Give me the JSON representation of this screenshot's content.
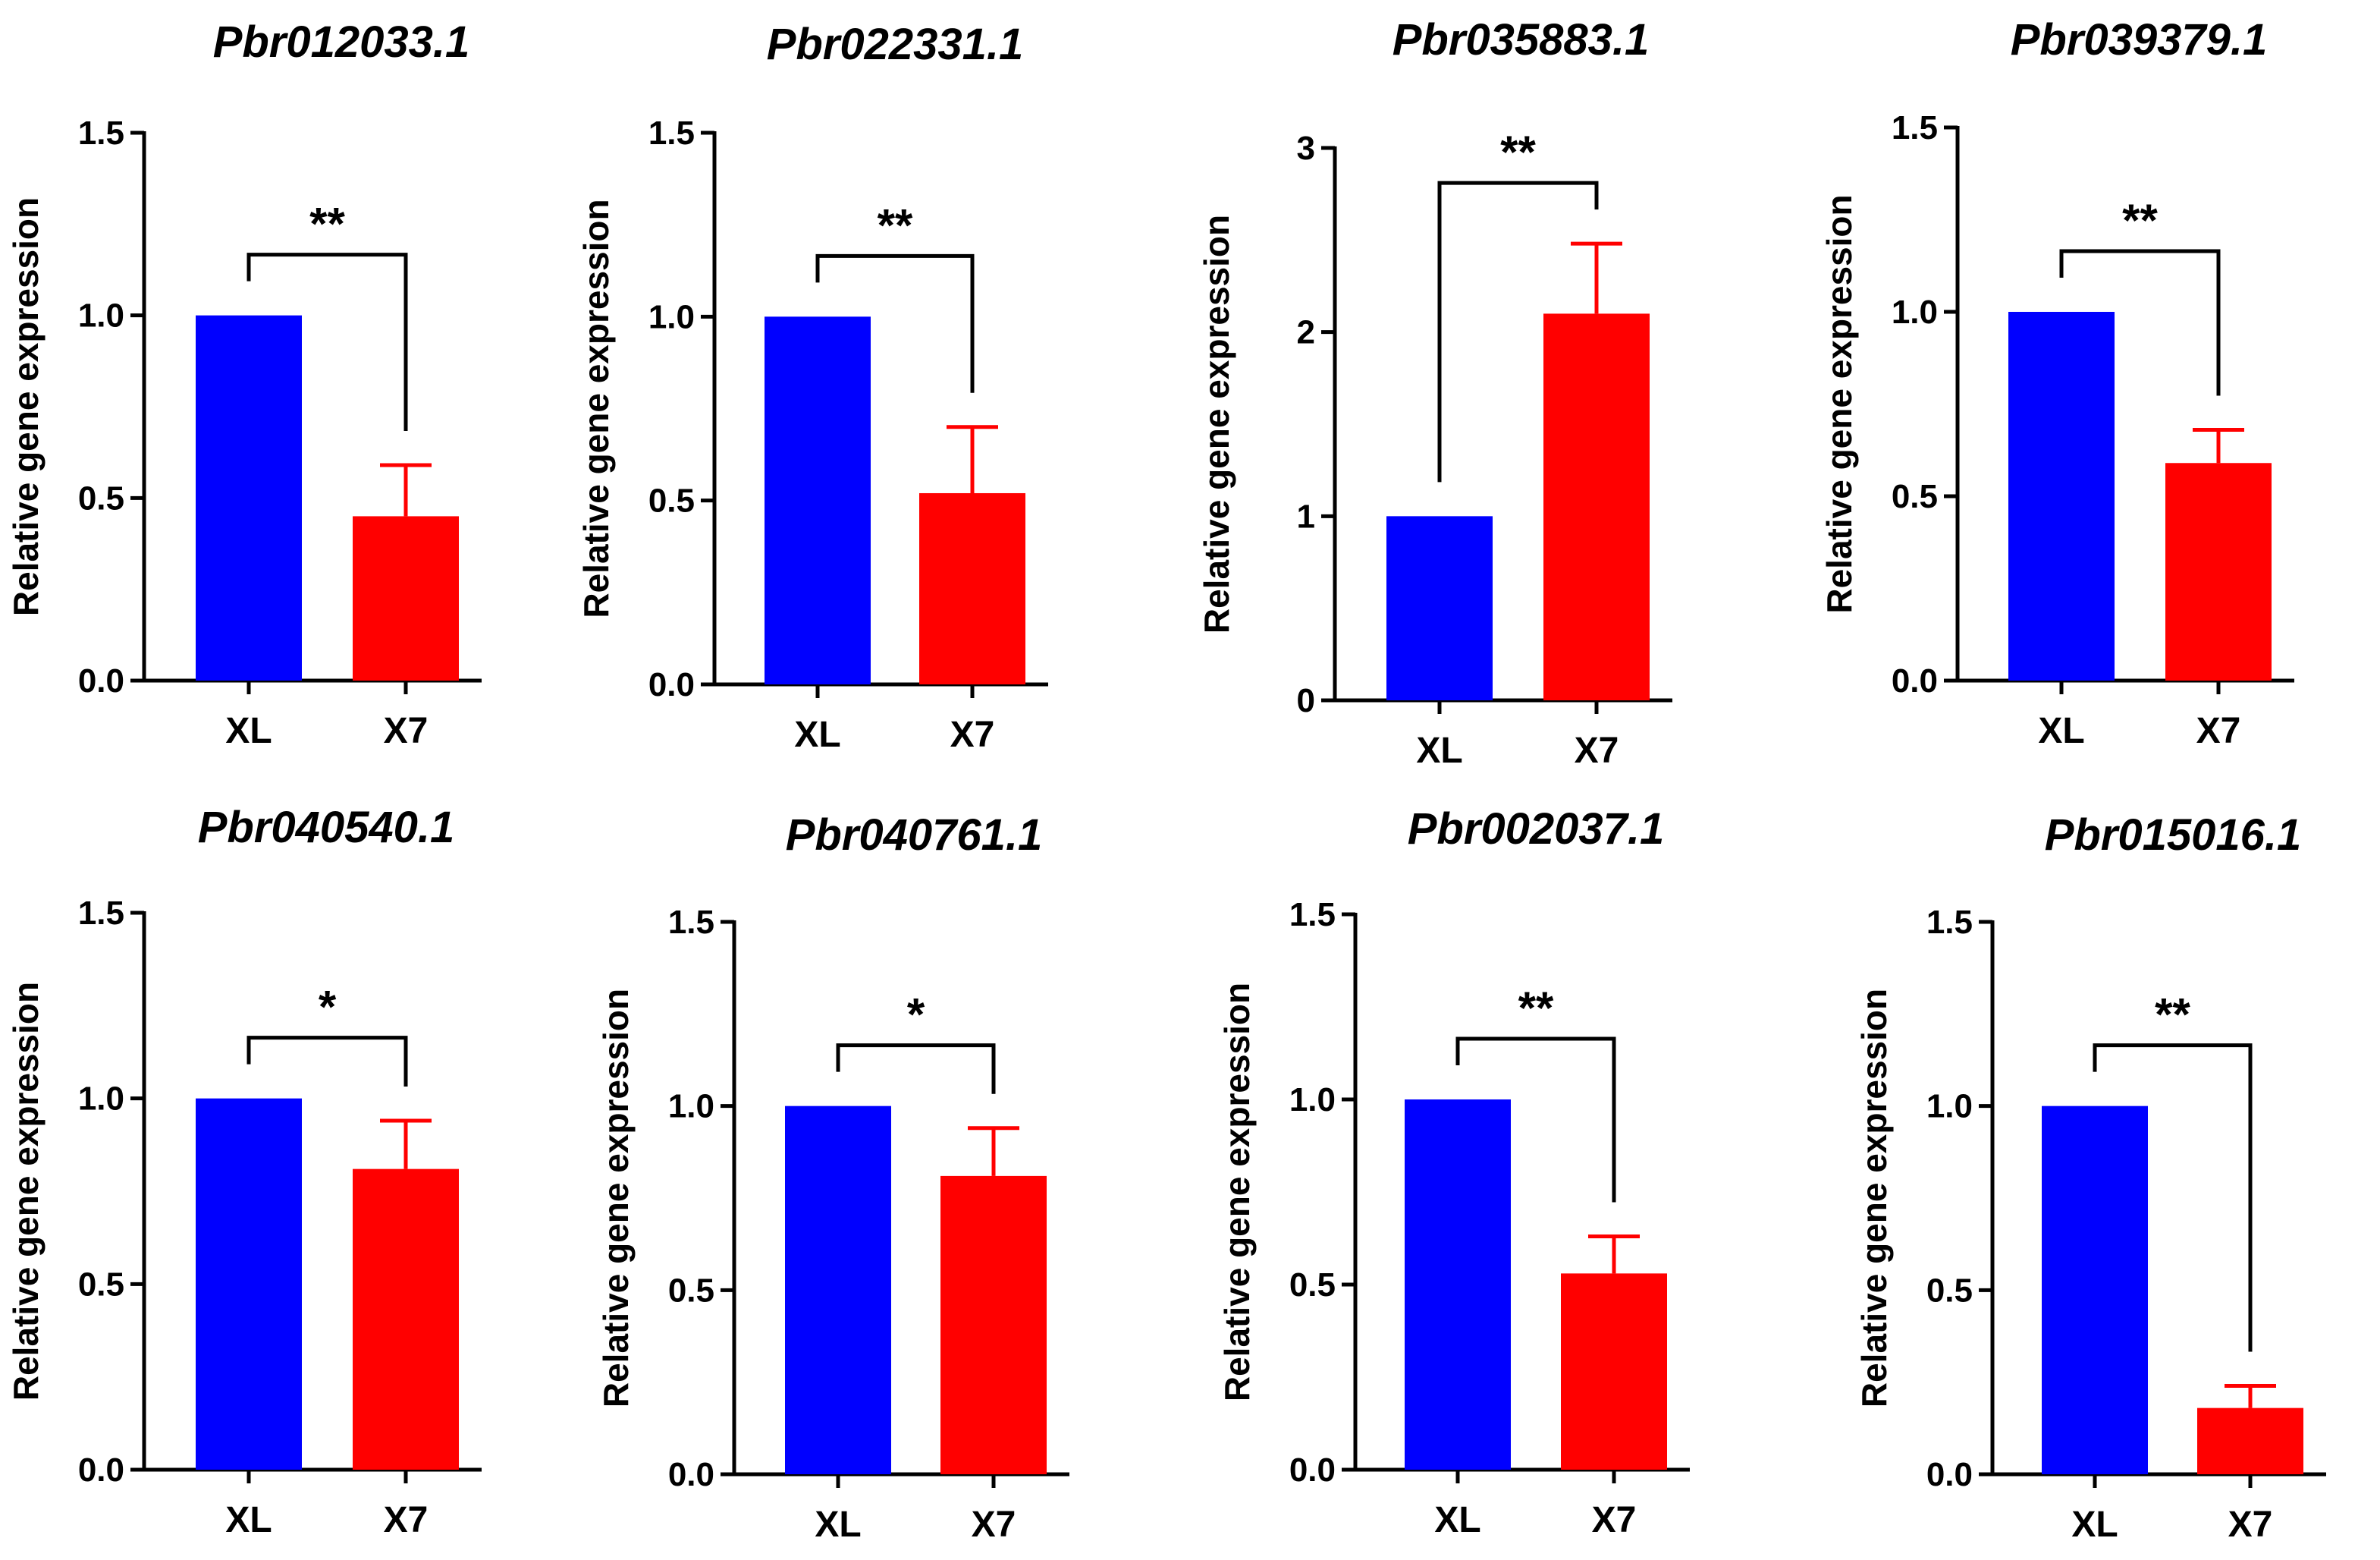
{
  "colors": {
    "XL": "#0000FF",
    "X7": "#FF0000",
    "axis": "#000000"
  },
  "chart_data": [
    {
      "type": "bar",
      "title": "Pbr012033.1",
      "ylabel": "Relative gene expression",
      "xlabel": "",
      "categories": [
        "XL",
        "X7"
      ],
      "values": [
        1.0,
        0.45
      ],
      "errors": [
        0,
        0.14
      ],
      "ylim": [
        0,
        1.5
      ],
      "yticks": [
        0,
        0.5,
        1.0,
        1.5
      ],
      "ytick_labels": [
        "0.0",
        "0.5",
        "1.0",
        "1.5"
      ],
      "significance": "**"
    },
    {
      "type": "bar",
      "title": "Pbr022331.1",
      "ylabel": "Relative gene expression",
      "xlabel": "",
      "categories": [
        "XL",
        "X7"
      ],
      "values": [
        1.0,
        0.52
      ],
      "errors": [
        0,
        0.18
      ],
      "ylim": [
        0,
        1.5
      ],
      "yticks": [
        0,
        0.5,
        1.0,
        1.5
      ],
      "ytick_labels": [
        "0.0",
        "0.5",
        "1.0",
        "1.5"
      ],
      "significance": "**"
    },
    {
      "type": "bar",
      "title": "Pbr035883.1",
      "ylabel": "Relative gene expression",
      "xlabel": "",
      "categories": [
        "XL",
        "X7"
      ],
      "values": [
        1.0,
        2.1
      ],
      "errors": [
        0,
        0.38
      ],
      "ylim": [
        0,
        3
      ],
      "yticks": [
        0,
        1,
        2,
        3
      ],
      "ytick_labels": [
        "0",
        "1",
        "2",
        "3"
      ],
      "significance": "**"
    },
    {
      "type": "bar",
      "title": "Pbr039379.1",
      "ylabel": "Relative gene expression",
      "xlabel": "",
      "categories": [
        "XL",
        "X7"
      ],
      "values": [
        1.0,
        0.59
      ],
      "errors": [
        0,
        0.09
      ],
      "ylim": [
        0,
        1.5
      ],
      "yticks": [
        0,
        0.5,
        1.0,
        1.5
      ],
      "ytick_labels": [
        "0.0",
        "0.5",
        "1.0",
        "1.5"
      ],
      "significance": "**"
    },
    {
      "type": "bar",
      "title": "Pbr040540.1",
      "ylabel": "Relative gene expression",
      "xlabel": "",
      "categories": [
        "XL",
        "X7"
      ],
      "values": [
        1.0,
        0.81
      ],
      "errors": [
        0,
        0.13
      ],
      "ylim": [
        0,
        1.5
      ],
      "yticks": [
        0,
        0.5,
        1.0,
        1.5
      ],
      "ytick_labels": [
        "0.0",
        "0.5",
        "1.0",
        "1.5"
      ],
      "significance": "*"
    },
    {
      "type": "bar",
      "title": "Pbr040761.1",
      "ylabel": "Relative gene expression",
      "xlabel": "",
      "categories": [
        "XL",
        "X7"
      ],
      "values": [
        1.0,
        0.81
      ],
      "errors": [
        0,
        0.13
      ],
      "ylim": [
        0,
        1.5
      ],
      "yticks": [
        0,
        0.5,
        1.0,
        1.5
      ],
      "ytick_labels": [
        "0.0",
        "0.5",
        "1.0",
        "1.5"
      ],
      "significance": "*"
    },
    {
      "type": "bar",
      "title": "Pbr002037.1",
      "ylabel": "Relative gene expression",
      "xlabel": "",
      "categories": [
        "XL",
        "X7"
      ],
      "values": [
        1.0,
        0.53
      ],
      "errors": [
        0,
        0.1
      ],
      "ylim": [
        0,
        1.5
      ],
      "yticks": [
        0,
        0.5,
        1.0,
        1.5
      ],
      "ytick_labels": [
        "0.0",
        "0.5",
        "1.0",
        "1.5"
      ],
      "significance": "**"
    },
    {
      "type": "bar",
      "title": "Pbr015016.1",
      "ylabel": "Relative gene expression",
      "xlabel": "",
      "categories": [
        "XL",
        "X7"
      ],
      "values": [
        1.0,
        0.18
      ],
      "errors": [
        0,
        0.06
      ],
      "ylim": [
        0,
        1.5
      ],
      "yticks": [
        0,
        0.5,
        1.0,
        1.5
      ],
      "ytick_labels": [
        "0.0",
        "0.5",
        "1.0",
        "1.5"
      ],
      "significance": "**"
    }
  ]
}
